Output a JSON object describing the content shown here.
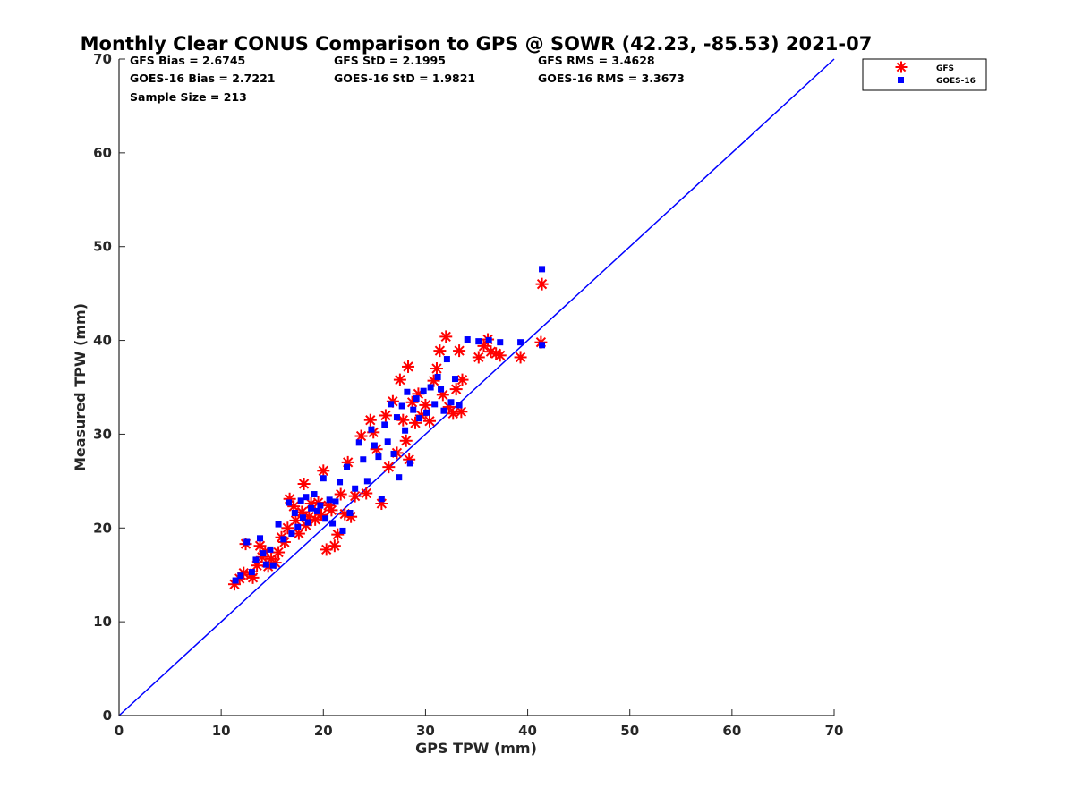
{
  "chart_data": {
    "type": "scatter",
    "title": "Monthly Clear CONUS Comparison to GPS @ SOWR (42.23, -85.53) 2021-07",
    "xlabel": "GPS TPW (mm)",
    "ylabel": "Measured TPW (mm)",
    "xlim": [
      0,
      70
    ],
    "ylim": [
      0,
      70
    ],
    "xticks": [
      0,
      10,
      20,
      30,
      40,
      50,
      60,
      70
    ],
    "yticks": [
      0,
      10,
      20,
      30,
      40,
      50,
      60,
      70
    ],
    "grid": false,
    "legend_position": "top-right",
    "one_to_one_line": {
      "x": [
        0,
        70
      ],
      "y": [
        0,
        70
      ],
      "color": "#0000ff"
    },
    "annotations": [
      "GFS Bias = 2.6745",
      "GFS StD = 2.1995",
      "GFS RMS = 3.4628",
      "GOES-16 Bias = 2.7221",
      "GOES-16 StD = 1.9821",
      "GOES-16 RMS = 3.3673",
      "Sample Size = 213"
    ],
    "series": [
      {
        "name": "GFS",
        "marker": "asterisk",
        "color": "#ff0000",
        "points": [
          [
            11.3,
            14.0
          ],
          [
            11.8,
            14.6
          ],
          [
            12.2,
            15.2
          ],
          [
            12.4,
            18.3
          ],
          [
            12.9,
            15.0
          ],
          [
            13.1,
            14.7
          ],
          [
            13.5,
            16.0
          ],
          [
            13.8,
            18.1
          ],
          [
            14.0,
            16.9
          ],
          [
            14.3,
            17.5
          ],
          [
            14.6,
            15.9
          ],
          [
            14.9,
            16.7
          ],
          [
            15.3,
            16.3
          ],
          [
            15.6,
            17.4
          ],
          [
            15.9,
            19.0
          ],
          [
            16.2,
            18.5
          ],
          [
            16.5,
            20.0
          ],
          [
            16.7,
            23.1
          ],
          [
            17.1,
            22.3
          ],
          [
            17.3,
            20.8
          ],
          [
            17.6,
            19.4
          ],
          [
            17.9,
            21.7
          ],
          [
            18.1,
            24.7
          ],
          [
            18.3,
            20.3
          ],
          [
            18.6,
            21.2
          ],
          [
            18.8,
            22.6
          ],
          [
            19.2,
            20.9
          ],
          [
            19.5,
            22.7
          ],
          [
            19.8,
            21.4
          ],
          [
            20.0,
            26.1
          ],
          [
            20.3,
            17.7
          ],
          [
            20.5,
            22.4
          ],
          [
            20.8,
            21.9
          ],
          [
            21.1,
            18.1
          ],
          [
            21.4,
            19.3
          ],
          [
            21.7,
            23.6
          ],
          [
            22.1,
            21.5
          ],
          [
            22.4,
            27.0
          ],
          [
            22.7,
            21.2
          ],
          [
            23.1,
            23.4
          ],
          [
            23.7,
            29.8
          ],
          [
            24.2,
            23.7
          ],
          [
            24.6,
            31.5
          ],
          [
            24.9,
            30.2
          ],
          [
            25.2,
            28.4
          ],
          [
            25.7,
            22.6
          ],
          [
            26.1,
            32.0
          ],
          [
            26.4,
            26.5
          ],
          [
            26.8,
            33.5
          ],
          [
            27.2,
            28.0
          ],
          [
            27.5,
            35.8
          ],
          [
            27.8,
            31.5
          ],
          [
            28.1,
            29.3
          ],
          [
            28.3,
            37.2
          ],
          [
            28.4,
            27.3
          ],
          [
            28.7,
            33.4
          ],
          [
            29.0,
            31.2
          ],
          [
            29.3,
            34.3
          ],
          [
            29.6,
            32.0
          ],
          [
            30.0,
            33.1
          ],
          [
            30.4,
            31.4
          ],
          [
            30.8,
            35.7
          ],
          [
            31.1,
            37.0
          ],
          [
            31.4,
            38.9
          ],
          [
            31.7,
            34.2
          ],
          [
            32.0,
            40.4
          ],
          [
            32.3,
            32.9
          ],
          [
            32.7,
            32.2
          ],
          [
            33.0,
            34.8
          ],
          [
            33.3,
            38.9
          ],
          [
            33.6,
            35.8
          ],
          [
            33.5,
            32.4
          ],
          [
            35.2,
            38.2
          ],
          [
            35.7,
            39.4
          ],
          [
            36.1,
            40.1
          ],
          [
            36.4,
            38.8
          ],
          [
            36.9,
            38.6
          ],
          [
            37.3,
            38.4
          ],
          [
            39.3,
            38.2
          ],
          [
            41.4,
            46.0
          ],
          [
            41.3,
            39.8
          ]
        ]
      },
      {
        "name": "GOES-16",
        "marker": "square",
        "color": "#0000ff",
        "points": [
          [
            11.4,
            14.4
          ],
          [
            11.9,
            14.9
          ],
          [
            12.5,
            18.5
          ],
          [
            13.0,
            15.3
          ],
          [
            13.4,
            16.6
          ],
          [
            13.8,
            18.9
          ],
          [
            14.1,
            17.3
          ],
          [
            14.4,
            16.1
          ],
          [
            14.8,
            17.7
          ],
          [
            15.1,
            16.0
          ],
          [
            15.6,
            20.4
          ],
          [
            16.1,
            18.8
          ],
          [
            16.6,
            22.7
          ],
          [
            16.9,
            19.4
          ],
          [
            17.2,
            21.6
          ],
          [
            17.5,
            20.1
          ],
          [
            17.8,
            22.9
          ],
          [
            18.0,
            21.1
          ],
          [
            18.3,
            23.3
          ],
          [
            18.5,
            20.6
          ],
          [
            18.8,
            22.1
          ],
          [
            19.1,
            23.6
          ],
          [
            19.4,
            21.8
          ],
          [
            19.7,
            22.4
          ],
          [
            20.0,
            25.3
          ],
          [
            20.2,
            21.0
          ],
          [
            20.6,
            23.0
          ],
          [
            20.9,
            20.5
          ],
          [
            21.2,
            22.8
          ],
          [
            21.6,
            24.9
          ],
          [
            21.9,
            19.7
          ],
          [
            22.3,
            26.5
          ],
          [
            22.6,
            21.6
          ],
          [
            23.1,
            24.2
          ],
          [
            23.5,
            29.1
          ],
          [
            23.9,
            27.3
          ],
          [
            24.3,
            25.0
          ],
          [
            24.7,
            30.5
          ],
          [
            25.0,
            28.8
          ],
          [
            25.4,
            27.6
          ],
          [
            25.7,
            23.1
          ],
          [
            26.0,
            31.0
          ],
          [
            26.3,
            29.2
          ],
          [
            26.6,
            33.2
          ],
          [
            26.9,
            27.9
          ],
          [
            27.2,
            31.8
          ],
          [
            27.4,
            25.4
          ],
          [
            27.7,
            33.0
          ],
          [
            28.0,
            30.4
          ],
          [
            28.2,
            34.5
          ],
          [
            28.5,
            26.9
          ],
          [
            28.8,
            32.6
          ],
          [
            29.1,
            33.8
          ],
          [
            29.4,
            31.7
          ],
          [
            29.8,
            34.6
          ],
          [
            30.1,
            32.3
          ],
          [
            30.5,
            35.0
          ],
          [
            30.9,
            33.2
          ],
          [
            31.2,
            36.1
          ],
          [
            31.5,
            34.8
          ],
          [
            31.8,
            32.5
          ],
          [
            32.1,
            38.0
          ],
          [
            32.5,
            33.4
          ],
          [
            32.9,
            35.9
          ],
          [
            33.3,
            33.1
          ],
          [
            34.1,
            40.1
          ],
          [
            35.2,
            39.9
          ],
          [
            36.2,
            40.0
          ],
          [
            37.3,
            39.8
          ],
          [
            39.3,
            39.8
          ],
          [
            41.4,
            47.6
          ],
          [
            41.4,
            39.5
          ]
        ]
      }
    ]
  }
}
